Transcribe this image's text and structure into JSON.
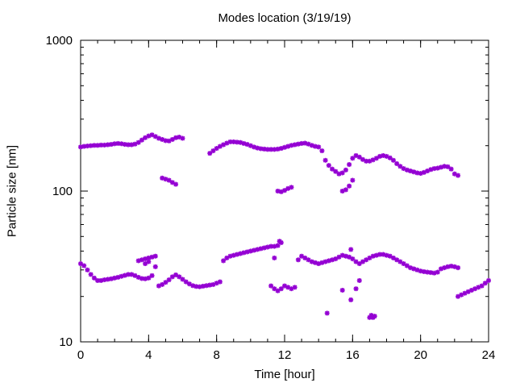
{
  "chart_data": {
    "type": "scatter",
    "title": "Modes location (3/19/19)",
    "xlabel": "Time [hour]",
    "ylabel": "Particle size [nm]",
    "xlim": [
      0,
      24
    ],
    "ylim": [
      10,
      1000
    ],
    "y_scale": "log",
    "x_ticks": [
      0,
      4,
      8,
      12,
      16,
      20,
      24
    ],
    "y_ticks": [
      10,
      100,
      1000
    ],
    "grid": false,
    "marker": "asterisk",
    "color": "#9400d3",
    "series": [
      {
        "points": [
          [
            0.0,
            196
          ],
          [
            0.2,
            198
          ],
          [
            0.4,
            199
          ],
          [
            0.6,
            200
          ],
          [
            0.8,
            201
          ],
          [
            1.0,
            201
          ],
          [
            1.2,
            202
          ],
          [
            1.4,
            202
          ],
          [
            1.6,
            203
          ],
          [
            1.8,
            204
          ],
          [
            2.0,
            206
          ],
          [
            2.2,
            207
          ],
          [
            2.4,
            206
          ],
          [
            2.6,
            204
          ],
          [
            2.8,
            203
          ],
          [
            3.0,
            203
          ],
          [
            3.2,
            205
          ],
          [
            3.4,
            210
          ],
          [
            3.6,
            218
          ],
          [
            3.8,
            226
          ],
          [
            4.0,
            232
          ],
          [
            4.2,
            236
          ],
          [
            4.4,
            230
          ],
          [
            4.6,
            224
          ],
          [
            4.8,
            220
          ],
          [
            5.0,
            216
          ],
          [
            5.2,
            215
          ],
          [
            5.4,
            220
          ],
          [
            5.6,
            226
          ],
          [
            5.8,
            228
          ],
          [
            6.0,
            224
          ],
          [
            7.6,
            178
          ],
          [
            7.8,
            185
          ],
          [
            8.0,
            192
          ],
          [
            8.2,
            198
          ],
          [
            8.4,
            203
          ],
          [
            8.6,
            208
          ],
          [
            8.8,
            212
          ],
          [
            9.0,
            212
          ],
          [
            9.2,
            211
          ],
          [
            9.4,
            210
          ],
          [
            9.6,
            207
          ],
          [
            9.8,
            204
          ],
          [
            10.0,
            200
          ],
          [
            10.2,
            196
          ],
          [
            10.4,
            193
          ],
          [
            10.6,
            191
          ],
          [
            10.8,
            190
          ],
          [
            11.0,
            189
          ],
          [
            11.2,
            189
          ],
          [
            11.4,
            189
          ],
          [
            11.6,
            190
          ],
          [
            11.8,
            192
          ],
          [
            12.0,
            195
          ],
          [
            12.2,
            198
          ],
          [
            12.4,
            201
          ],
          [
            12.6,
            203
          ],
          [
            12.8,
            205
          ],
          [
            13.0,
            207
          ],
          [
            13.2,
            208
          ],
          [
            13.4,
            205
          ],
          [
            13.6,
            201
          ],
          [
            13.8,
            198
          ],
          [
            14.0,
            196
          ],
          [
            14.2,
            185
          ],
          [
            14.4,
            160
          ],
          [
            14.6,
            148
          ],
          [
            14.8,
            140
          ],
          [
            15.0,
            135
          ],
          [
            15.2,
            130
          ],
          [
            15.4,
            132
          ],
          [
            15.6,
            138
          ],
          [
            15.8,
            150
          ],
          [
            16.0,
            165
          ],
          [
            16.2,
            172
          ],
          [
            16.4,
            168
          ],
          [
            16.6,
            162
          ],
          [
            16.8,
            158
          ],
          [
            17.0,
            158
          ],
          [
            17.2,
            161
          ],
          [
            17.4,
            165
          ],
          [
            17.6,
            170
          ],
          [
            17.8,
            172
          ],
          [
            18.0,
            170
          ],
          [
            18.2,
            166
          ],
          [
            18.4,
            160
          ],
          [
            18.6,
            152
          ],
          [
            18.8,
            146
          ],
          [
            19.0,
            141
          ],
          [
            19.2,
            138
          ],
          [
            19.4,
            136
          ],
          [
            19.6,
            134
          ],
          [
            19.8,
            132
          ],
          [
            20.0,
            131
          ],
          [
            20.2,
            133
          ],
          [
            20.4,
            136
          ],
          [
            20.6,
            139
          ],
          [
            20.8,
            141
          ],
          [
            21.0,
            142
          ],
          [
            21.2,
            144
          ],
          [
            21.4,
            146
          ],
          [
            21.6,
            145
          ],
          [
            21.8,
            140
          ],
          [
            22.0,
            130
          ],
          [
            22.2,
            127
          ],
          [
            4.8,
            122
          ],
          [
            5.0,
            120
          ],
          [
            5.2,
            118
          ],
          [
            5.4,
            114
          ],
          [
            5.6,
            111
          ],
          [
            11.6,
            100
          ],
          [
            11.8,
            99
          ],
          [
            12.0,
            101
          ],
          [
            12.2,
            104
          ],
          [
            12.4,
            106
          ],
          [
            15.4,
            100
          ],
          [
            15.6,
            102
          ],
          [
            15.8,
            108
          ],
          [
            16.0,
            118
          ],
          [
            0.0,
            33
          ],
          [
            0.2,
            32
          ],
          [
            0.4,
            30
          ],
          [
            0.6,
            28
          ],
          [
            0.8,
            26.5
          ],
          [
            1.0,
            25.5
          ],
          [
            1.2,
            25.5
          ],
          [
            1.4,
            25.8
          ],
          [
            1.6,
            26
          ],
          [
            1.8,
            26.2
          ],
          [
            2.0,
            26.5
          ],
          [
            2.2,
            26.8
          ],
          [
            2.4,
            27.2
          ],
          [
            2.6,
            27.6
          ],
          [
            2.8,
            28
          ],
          [
            3.0,
            28
          ],
          [
            3.2,
            27.5
          ],
          [
            3.4,
            26.8
          ],
          [
            3.6,
            26.3
          ],
          [
            3.8,
            26.2
          ],
          [
            4.0,
            26.5
          ],
          [
            4.2,
            27.5
          ],
          [
            3.4,
            34.5
          ],
          [
            3.6,
            35
          ],
          [
            3.8,
            35.5
          ],
          [
            4.0,
            36
          ],
          [
            4.2,
            36.5
          ],
          [
            4.4,
            37
          ],
          [
            3.8,
            33
          ],
          [
            4.0,
            34
          ],
          [
            4.4,
            31.5
          ],
          [
            4.6,
            23.5
          ],
          [
            4.8,
            24
          ],
          [
            5.0,
            24.8
          ],
          [
            5.2,
            25.8
          ],
          [
            5.4,
            27
          ],
          [
            5.6,
            27.8
          ],
          [
            5.8,
            27
          ],
          [
            6.0,
            26
          ],
          [
            6.2,
            25
          ],
          [
            6.4,
            24.2
          ],
          [
            6.6,
            23.6
          ],
          [
            6.8,
            23.3
          ],
          [
            7.0,
            23.2
          ],
          [
            7.2,
            23.4
          ],
          [
            7.4,
            23.6
          ],
          [
            7.6,
            23.8
          ],
          [
            7.8,
            24
          ],
          [
            8.0,
            24.5
          ],
          [
            8.2,
            25
          ],
          [
            8.4,
            34.5
          ],
          [
            8.6,
            36
          ],
          [
            8.8,
            37
          ],
          [
            9.0,
            37.5
          ],
          [
            9.2,
            38
          ],
          [
            9.4,
            38.5
          ],
          [
            9.6,
            39
          ],
          [
            9.8,
            39.5
          ],
          [
            10.0,
            40
          ],
          [
            10.2,
            40.5
          ],
          [
            10.4,
            41
          ],
          [
            10.6,
            41.5
          ],
          [
            10.8,
            42
          ],
          [
            11.0,
            42.5
          ],
          [
            11.2,
            43
          ],
          [
            11.4,
            43
          ],
          [
            11.6,
            43.5
          ],
          [
            11.8,
            45.5
          ],
          [
            11.7,
            46.5
          ],
          [
            11.4,
            36
          ],
          [
            11.2,
            23.5
          ],
          [
            11.4,
            22.5
          ],
          [
            11.6,
            21.8
          ],
          [
            11.8,
            22.5
          ],
          [
            12.0,
            23.5
          ],
          [
            12.2,
            23
          ],
          [
            12.4,
            22.5
          ],
          [
            12.6,
            23
          ],
          [
            12.8,
            35
          ],
          [
            13.0,
            37
          ],
          [
            13.2,
            36
          ],
          [
            13.4,
            35
          ],
          [
            13.6,
            34
          ],
          [
            13.8,
            33.5
          ],
          [
            14.0,
            33
          ],
          [
            14.2,
            33.5
          ],
          [
            14.4,
            34
          ],
          [
            14.6,
            34.5
          ],
          [
            14.8,
            35
          ],
          [
            15.0,
            35.5
          ],
          [
            15.2,
            36.5
          ],
          [
            15.4,
            37.5
          ],
          [
            15.6,
            37
          ],
          [
            15.8,
            36.5
          ],
          [
            16.0,
            35.5
          ],
          [
            16.2,
            34
          ],
          [
            15.9,
            41
          ],
          [
            16.4,
            33
          ],
          [
            16.6,
            34
          ],
          [
            16.8,
            35
          ],
          [
            17.0,
            36
          ],
          [
            17.2,
            37
          ],
          [
            17.4,
            37.5
          ],
          [
            17.6,
            38
          ],
          [
            17.8,
            38
          ],
          [
            18.0,
            37.5
          ],
          [
            18.2,
            37
          ],
          [
            18.4,
            36
          ],
          [
            18.6,
            35
          ],
          [
            18.8,
            34
          ],
          [
            19.0,
            33
          ],
          [
            19.2,
            32
          ],
          [
            19.4,
            31
          ],
          [
            19.6,
            30.5
          ],
          [
            19.8,
            30
          ],
          [
            20.0,
            29.5
          ],
          [
            20.2,
            29.2
          ],
          [
            20.4,
            29
          ],
          [
            20.6,
            28.8
          ],
          [
            20.8,
            28.6
          ],
          [
            21.0,
            29
          ],
          [
            21.2,
            30.5
          ],
          [
            21.4,
            31
          ],
          [
            21.6,
            31.5
          ],
          [
            21.8,
            31.8
          ],
          [
            22.0,
            31.5
          ],
          [
            22.2,
            31
          ],
          [
            22.2,
            20
          ],
          [
            22.4,
            20.5
          ],
          [
            22.6,
            21
          ],
          [
            22.8,
            21.5
          ],
          [
            23.0,
            22
          ],
          [
            23.2,
            22.5
          ],
          [
            23.4,
            23
          ],
          [
            23.6,
            23.5
          ],
          [
            23.8,
            24.5
          ],
          [
            24.0,
            25.5
          ],
          [
            15.4,
            22
          ],
          [
            16.4,
            25.5
          ],
          [
            16.2,
            22.5
          ],
          [
            15.9,
            19
          ],
          [
            14.5,
            15.5
          ],
          [
            17.0,
            14.5
          ],
          [
            17.1,
            15
          ],
          [
            17.2,
            14.5
          ],
          [
            17.3,
            14.8
          ]
        ]
      }
    ]
  }
}
